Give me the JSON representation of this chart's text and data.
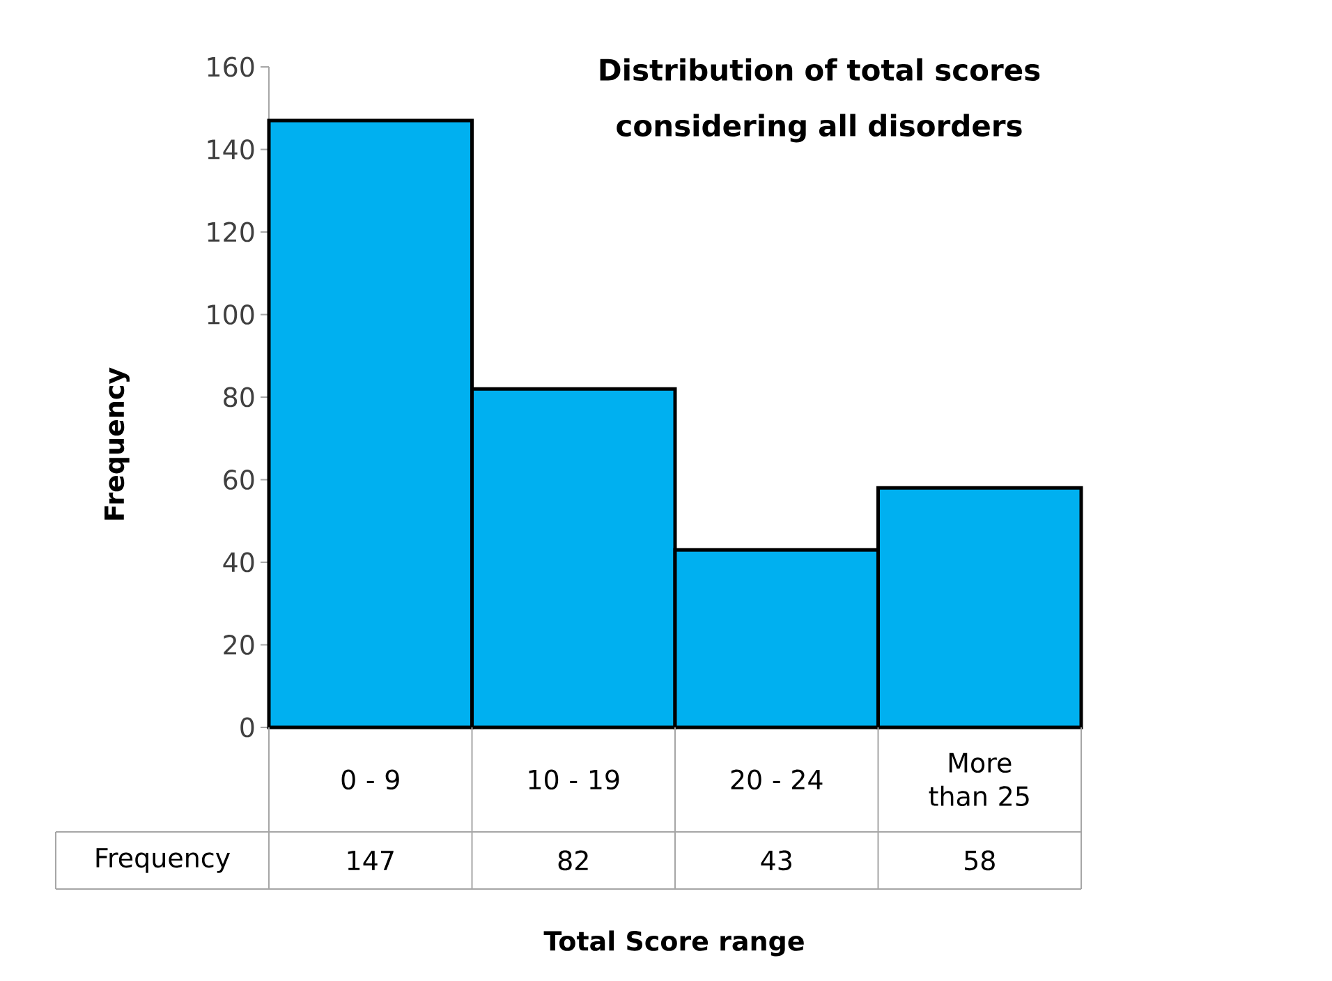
{
  "chart_data": {
    "type": "bar",
    "title": "Distribution of total scores considering all disorders",
    "xlabel": "Total Score range",
    "ylabel": "Frequency",
    "categories": [
      "0 - 9",
      "10 - 19",
      "20 - 24",
      "More than 25"
    ],
    "series": [
      {
        "name": "Frequency",
        "color": "#00b0f0",
        "values": [
          147,
          82,
          43,
          58
        ]
      }
    ],
    "ylim": [
      0,
      160
    ],
    "yticks": [
      0,
      20,
      40,
      60,
      80,
      100,
      120,
      140,
      160
    ],
    "data_labels": true
  }
}
